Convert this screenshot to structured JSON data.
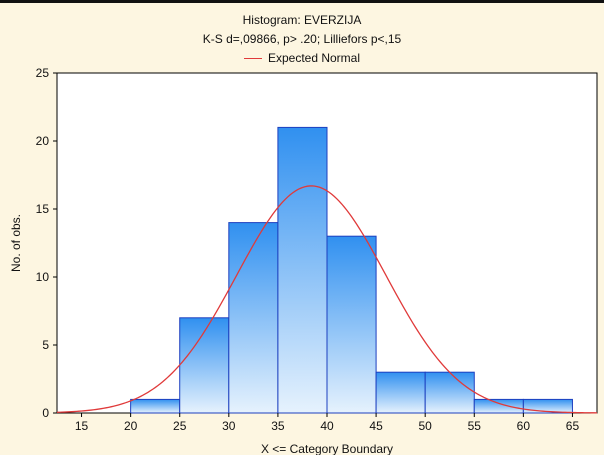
{
  "chart_data": {
    "type": "bar",
    "title": "Histogram: EVERZIJA",
    "subtitle": "K-S d=,09866, p> .20; Lilliefors p<,15",
    "xlabel": "X <= Category Boundary",
    "ylabel": "No. of obs.",
    "x_ticks": [
      15,
      20,
      25,
      30,
      35,
      40,
      45,
      50,
      55,
      60,
      65
    ],
    "xlim": [
      12.5,
      67.5
    ],
    "ylim": [
      0,
      25
    ],
    "y_ticks": [
      0,
      5,
      10,
      15,
      20,
      25
    ],
    "bins": [
      {
        "from": 15,
        "to": 20,
        "value": 0
      },
      {
        "from": 20,
        "to": 25,
        "value": 1
      },
      {
        "from": 25,
        "to": 30,
        "value": 7
      },
      {
        "from": 30,
        "to": 35,
        "value": 14
      },
      {
        "from": 35,
        "to": 40,
        "value": 21
      },
      {
        "from": 40,
        "to": 45,
        "value": 13
      },
      {
        "from": 45,
        "to": 50,
        "value": 3
      },
      {
        "from": 50,
        "to": 55,
        "value": 3
      },
      {
        "from": 55,
        "to": 60,
        "value": 1
      },
      {
        "from": 60,
        "to": 65,
        "value": 1
      }
    ],
    "series": [
      {
        "name": "Expected Normal",
        "type": "line",
        "mean": 38.4,
        "sd": 7.6,
        "peak": 16.7
      }
    ],
    "grid": false,
    "legend_position": "top-center",
    "colors": {
      "bar_top": "#3090f0",
      "bar_bottom": "#e6f2fd",
      "bar_edge": "#1c3fbf",
      "curve": "#e03a3a",
      "plot_bg": "#ffffff",
      "page_bg": "#fdf6e1"
    }
  }
}
